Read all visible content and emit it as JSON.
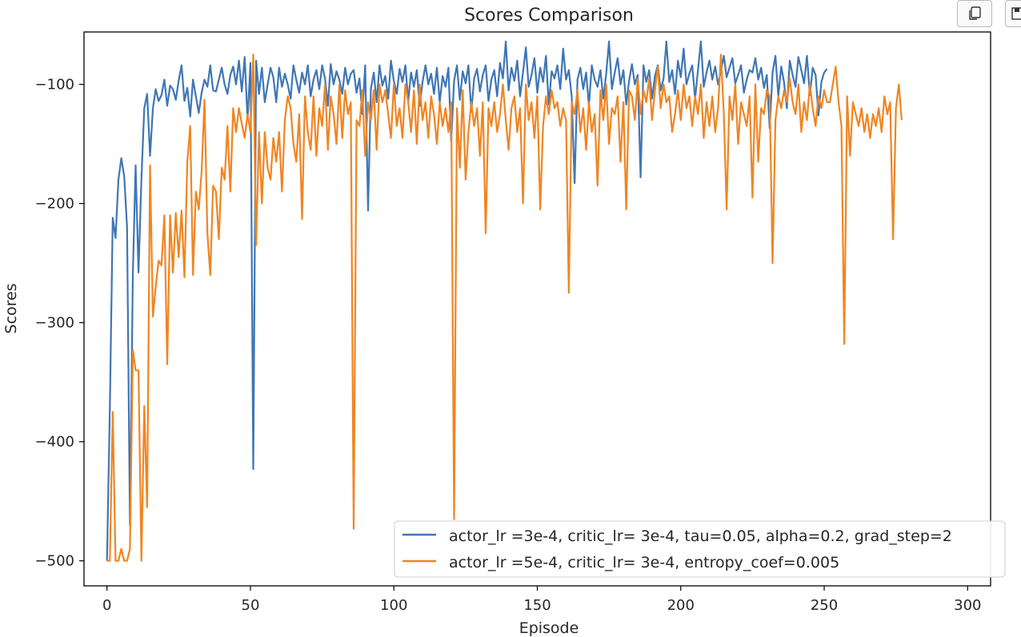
{
  "chart_data": {
    "type": "line",
    "title": "Scores Comparison",
    "xlabel": "Episode",
    "ylabel": "Scores",
    "xlim": [
      -8,
      308
    ],
    "ylim": [
      -521,
      -56
    ],
    "xticks": [
      0,
      50,
      100,
      150,
      200,
      250,
      300
    ],
    "yticks": [
      -100,
      -200,
      -300,
      -400,
      -500
    ],
    "xtick_labels": [
      "0",
      "50",
      "100",
      "150",
      "200",
      "250",
      "300"
    ],
    "ytick_labels": [
      "−100",
      "−200",
      "−300",
      "−400",
      "−500"
    ],
    "grid": false,
    "legend_position": "lower-right",
    "series": [
      {
        "name": "actor_lr =3e-4, critic_lr= 3e-4, tau=0.05, alpha=0.2, grad_step=2",
        "color": "#3f76b4",
        "values": [
          -500,
          -371,
          -212,
          -229,
          -180,
          -162,
          -177,
          -220,
          -470,
          -260,
          -168,
          -258,
          -180,
          -120,
          -108,
          -160,
          -120,
          -104,
          -114,
          -109,
          -96,
          -118,
          -101,
          -104,
          -113,
          -97,
          -84,
          -114,
          -103,
          -127,
          -96,
          -110,
          -124,
          -107,
          -96,
          -102,
          -84,
          -105,
          -106,
          -96,
          -86,
          -100,
          -108,
          -92,
          -85,
          -100,
          -80,
          -106,
          -77,
          -130,
          -82,
          -423,
          -80,
          -108,
          -86,
          -115,
          -100,
          -86,
          -94,
          -115,
          -86,
          -102,
          -91,
          -100,
          -112,
          -84,
          -96,
          -107,
          -90,
          -100,
          -84,
          -110,
          -96,
          -88,
          -104,
          -84,
          -95,
          -118,
          -83,
          -100,
          -89,
          -96,
          -108,
          -86,
          -100,
          -91,
          -88,
          -107,
          -95,
          -125,
          -84,
          -206,
          -104,
          -90,
          -115,
          -84,
          -101,
          -93,
          -112,
          -80,
          -97,
          -108,
          -87,
          -98,
          -84,
          -114,
          -90,
          -102,
          -88,
          -118,
          -98,
          -84,
          -100,
          -91,
          -108,
          -86,
          -115,
          -93,
          -102,
          -86,
          -148,
          -97,
          -84,
          -113,
          -89,
          -99,
          -84,
          -123,
          -95,
          -87,
          -106,
          -92,
          -84,
          -114,
          -96,
          -88,
          -110,
          -82,
          -95,
          -64,
          -105,
          -86,
          -97,
          -80,
          -110,
          -90,
          -69,
          -102,
          -92,
          -78,
          -107,
          -86,
          -98,
          -76,
          -117,
          -89,
          -95,
          -84,
          -104,
          -70,
          -96,
          -88,
          -110,
          -183,
          -96,
          -86,
          -104,
          -90,
          -118,
          -84,
          -96,
          -102,
          -88,
          -112,
          -91,
          -64,
          -104,
          -90,
          -78,
          -100,
          -88,
          -117,
          -97,
          -83,
          -100,
          -92,
          -178,
          -84,
          -98,
          -88,
          -112,
          -93,
          -84,
          -105,
          -95,
          -64,
          -98,
          -88,
          -108,
          -80,
          -94,
          -70,
          -100,
          -91,
          -84,
          -112,
          -88,
          -64,
          -102,
          -90,
          -80,
          -96,
          -85,
          -100,
          -89,
          -76,
          -94,
          -86,
          -78,
          -99,
          -92,
          -84,
          -107,
          -96,
          -88,
          -90,
          -78,
          -96,
          -86,
          -103,
          -92,
          -137,
          -90,
          -76,
          -110,
          -85,
          -98,
          -120,
          -80,
          -92,
          -102,
          -77,
          -88,
          -99,
          -76,
          -109,
          -86,
          -92,
          -126,
          -98,
          -90,
          -87
        ]
      },
      {
        "name": "actor_lr =5e-4, critic_lr= 3e-4, entropy_coef=0.005",
        "color": "#f08522",
        "values": [
          -500,
          -500,
          -375,
          -500,
          -500,
          -490,
          -500,
          -500,
          -490,
          -323,
          -340,
          -340,
          -500,
          -370,
          -455,
          -168,
          -295,
          -270,
          -248,
          -252,
          -210,
          -335,
          -210,
          -258,
          -208,
          -245,
          -206,
          -262,
          -165,
          -135,
          -260,
          -190,
          -205,
          -173,
          -113,
          -225,
          -260,
          -185,
          -190,
          -230,
          -170,
          -180,
          -135,
          -190,
          -120,
          -140,
          -120,
          -133,
          -145,
          -125,
          -140,
          -75,
          -235,
          -140,
          -200,
          -140,
          -170,
          -180,
          -145,
          -165,
          -140,
          -190,
          -130,
          -110,
          -120,
          -150,
          -165,
          -125,
          -213,
          -110,
          -140,
          -155,
          -110,
          -160,
          -120,
          -135,
          -100,
          -155,
          -110,
          -125,
          -150,
          -100,
          -145,
          -105,
          -125,
          -115,
          -473,
          -130,
          -135,
          -105,
          -160,
          -115,
          -130,
          -105,
          -155,
          -100,
          -115,
          -105,
          -125,
          -145,
          -100,
          -135,
          -120,
          -145,
          -100,
          -115,
          -140,
          -105,
          -150,
          -100,
          -130,
          -115,
          -145,
          -110,
          -125,
          -150,
          -115,
          -135,
          -120,
          -140,
          -115,
          -465,
          -120,
          -170,
          -105,
          -180,
          -140,
          -115,
          -135,
          -120,
          -160,
          -115,
          -225,
          -120,
          -135,
          -115,
          -140,
          -125,
          -100,
          -130,
          -155,
          -120,
          -110,
          -140,
          -120,
          -200,
          -100,
          -130,
          -115,
          -145,
          -110,
          -205,
          -135,
          -110,
          -125,
          -105,
          -120,
          -115,
          -135,
          -120,
          -130,
          -275,
          -115,
          -125,
          -105,
          -140,
          -120,
          -155,
          -115,
          -140,
          -125,
          -185,
          -105,
          -130,
          -100,
          -150,
          -120,
          -125,
          -110,
          -165,
          -115,
          -205,
          -105,
          -110,
          -130,
          -95,
          -125,
          -105,
          -115,
          -95,
          -130,
          -105,
          -85,
          -120,
          -100,
          -115,
          -110,
          -140,
          -125,
          -105,
          -130,
          -100,
          -120,
          -110,
          -135,
          -110,
          -125,
          -100,
          -145,
          -115,
          -135,
          -110,
          -140,
          -120,
          -75,
          -125,
          -205,
          -110,
          -130,
          -100,
          -150,
          -115,
          -125,
          -135,
          -110,
          -195,
          -100,
          -165,
          -120,
          -125,
          -105,
          -110,
          -250,
          -130,
          -110,
          -120,
          -105,
          -115,
          -95,
          -115,
          -125,
          -100,
          -140,
          -115,
          -130,
          -100,
          -120,
          -135,
          -110,
          -120,
          -105,
          -115,
          -115,
          -100,
          -85,
          -115,
          -135,
          -318,
          -110,
          -160,
          -115,
          -125,
          -135,
          -120,
          -140,
          -125,
          -145,
          -125,
          -135,
          -120,
          -140,
          -110,
          -125,
          -115,
          -230,
          -120,
          -100,
          -130
        ]
      }
    ]
  },
  "toolbar": {
    "copy_icon": "copy-icon",
    "save_icon": "save-icon"
  }
}
